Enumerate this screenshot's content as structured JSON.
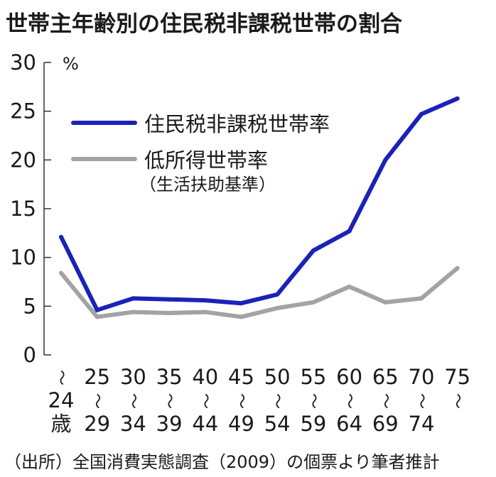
{
  "chart_data": {
    "type": "line",
    "title": "世帯主年齢別の住民税非課税世帯の割合",
    "ylabel": "",
    "y_unit": "%",
    "ylim": [
      0,
      30
    ],
    "yticks": [
      "0",
      "5",
      "10",
      "15",
      "20",
      "25",
      "30"
    ],
    "grid": false,
    "legend_position": "top-left",
    "categories": [
      [
        "〜",
        "24",
        "歳"
      ],
      [
        "25",
        "〜",
        "29"
      ],
      [
        "30",
        "〜",
        "34"
      ],
      [
        "35",
        "〜",
        "39"
      ],
      [
        "40",
        "〜",
        "44"
      ],
      [
        "45",
        "〜",
        "49"
      ],
      [
        "50",
        "〜",
        "54"
      ],
      [
        "55",
        "〜",
        "59"
      ],
      [
        "60",
        "〜",
        "64"
      ],
      [
        "65",
        "〜",
        "69"
      ],
      [
        "70",
        "〜",
        "74"
      ],
      [
        "75",
        "〜",
        ""
      ]
    ],
    "series": [
      {
        "name": "住民税非課税世帯率",
        "color": "#1b22b8",
        "values": [
          12.1,
          4.6,
          5.8,
          5.7,
          5.6,
          5.3,
          6.2,
          10.7,
          12.7,
          20.0,
          24.7,
          26.3
        ]
      },
      {
        "name": "低所得世帯率",
        "sublabel": "（生活扶助基準）",
        "color": "#a3a3a3",
        "values": [
          8.4,
          3.9,
          4.4,
          4.3,
          4.4,
          3.9,
          4.8,
          5.4,
          7.0,
          5.4,
          5.8,
          8.9
        ]
      }
    ],
    "source": "（出所）全国消費実態調査（2009）の個票より筆者推計"
  }
}
